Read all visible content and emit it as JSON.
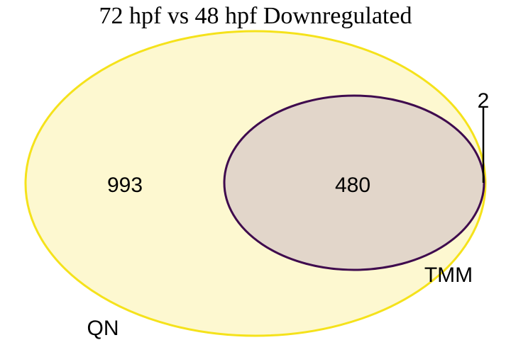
{
  "title": "72 hpf vs 48 hpf Downregulated",
  "sets": [
    {
      "label": "QN",
      "color": "#f5e21b",
      "fill": "#fdf8d0"
    },
    {
      "label": "TMM",
      "color": "#3f0b4e",
      "fill": "#e2d6ca"
    }
  ],
  "regions": {
    "qn_only": "993",
    "intersection": "480",
    "tmm_only": "2"
  }
}
